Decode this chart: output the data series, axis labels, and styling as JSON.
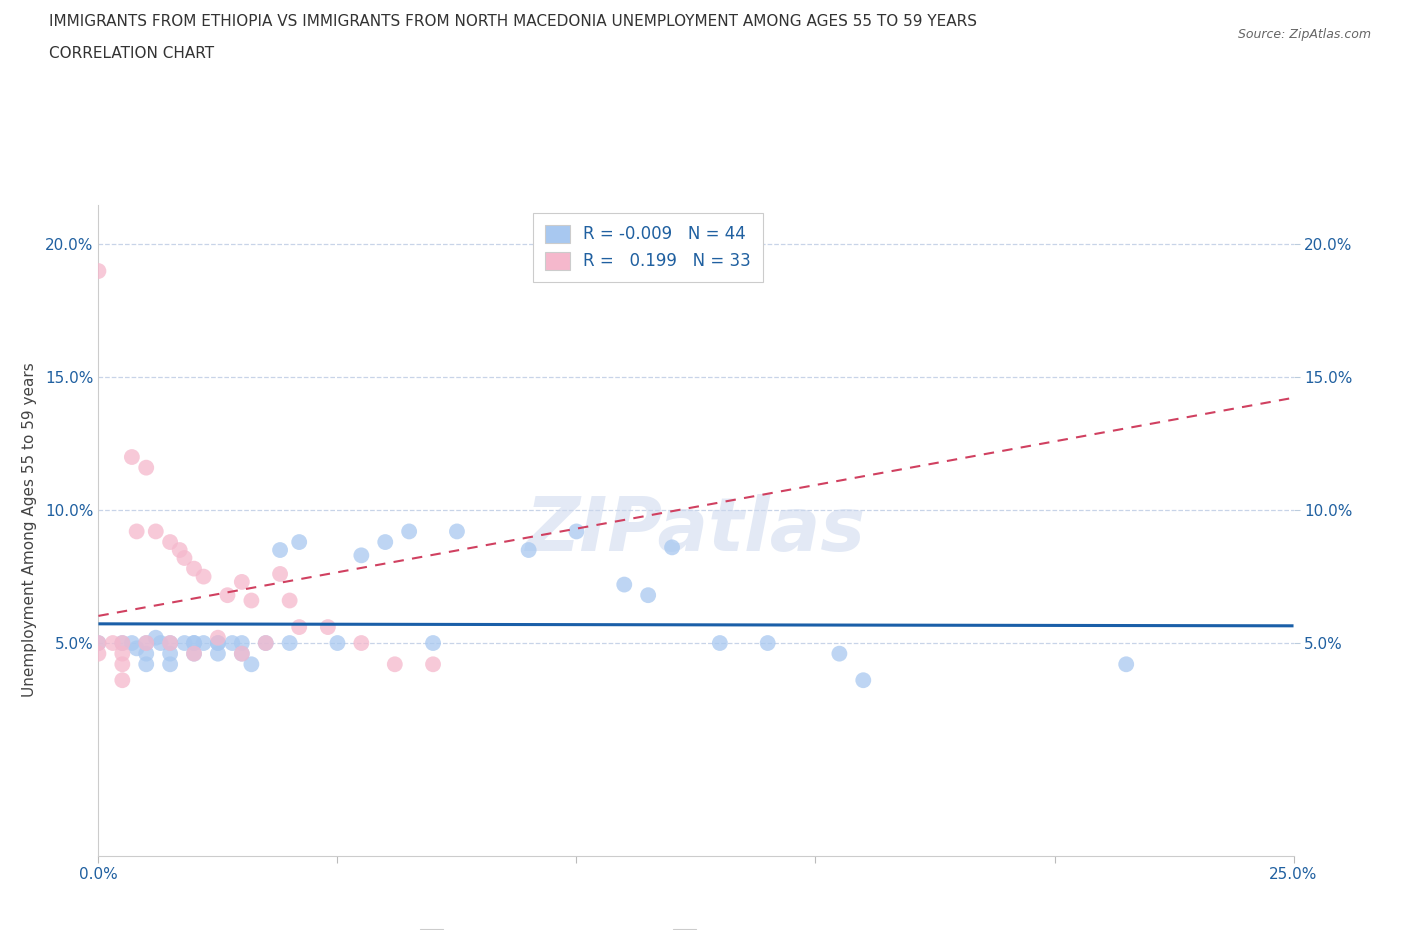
{
  "title_line1": "IMMIGRANTS FROM ETHIOPIA VS IMMIGRANTS FROM NORTH MACEDONIA UNEMPLOYMENT AMONG AGES 55 TO 59 YEARS",
  "title_line2": "CORRELATION CHART",
  "source": "Source: ZipAtlas.com",
  "ylabel": "Unemployment Among Ages 55 to 59 years",
  "xlim": [
    0.0,
    0.25
  ],
  "ylim": [
    -0.03,
    0.215
  ],
  "yticks": [
    0.05,
    0.1,
    0.15,
    0.2
  ],
  "ytick_labels": [
    "5.0%",
    "10.0%",
    "15.0%",
    "20.0%"
  ],
  "xticks": [
    0.0,
    0.05,
    0.1,
    0.15,
    0.2,
    0.25
  ],
  "xtick_labels": [
    "0.0%",
    "",
    "",
    "",
    "",
    "25.0%"
  ],
  "watermark": "ZIPatlas",
  "legend_r_ethiopia": "-0.009",
  "legend_n_ethiopia": "44",
  "legend_r_macedonia": "0.199",
  "legend_n_macedonia": "33",
  "color_ethiopia": "#a8c8f0",
  "color_macedonia": "#f5b8cc",
  "trendline_ethiopia_color": "#1a5fa8",
  "trendline_macedonia_color": "#d04060",
  "gridline_color": "#c8d4e8",
  "ethiopia_x": [
    0.0,
    0.005,
    0.007,
    0.008,
    0.01,
    0.01,
    0.01,
    0.012,
    0.013,
    0.015,
    0.015,
    0.015,
    0.018,
    0.02,
    0.02,
    0.02,
    0.022,
    0.025,
    0.025,
    0.025,
    0.028,
    0.03,
    0.03,
    0.032,
    0.035,
    0.038,
    0.04,
    0.042,
    0.05,
    0.055,
    0.06,
    0.065,
    0.07,
    0.075,
    0.09,
    0.1,
    0.11,
    0.115,
    0.12,
    0.13,
    0.14,
    0.155,
    0.16,
    0.215
  ],
  "ethiopia_y": [
    0.05,
    0.05,
    0.05,
    0.048,
    0.05,
    0.046,
    0.042,
    0.052,
    0.05,
    0.05,
    0.046,
    0.042,
    0.05,
    0.05,
    0.05,
    0.046,
    0.05,
    0.05,
    0.05,
    0.046,
    0.05,
    0.05,
    0.046,
    0.042,
    0.05,
    0.085,
    0.05,
    0.088,
    0.05,
    0.083,
    0.088,
    0.092,
    0.05,
    0.092,
    0.085,
    0.092,
    0.072,
    0.068,
    0.086,
    0.05,
    0.05,
    0.046,
    0.036,
    0.042
  ],
  "macedonia_x": [
    0.0,
    0.0,
    0.0,
    0.003,
    0.005,
    0.005,
    0.005,
    0.005,
    0.007,
    0.008,
    0.01,
    0.01,
    0.012,
    0.015,
    0.015,
    0.017,
    0.018,
    0.02,
    0.02,
    0.022,
    0.025,
    0.027,
    0.03,
    0.03,
    0.032,
    0.035,
    0.038,
    0.04,
    0.042,
    0.048,
    0.055,
    0.062,
    0.07
  ],
  "macedonia_y": [
    0.19,
    0.05,
    0.046,
    0.05,
    0.05,
    0.046,
    0.042,
    0.036,
    0.12,
    0.092,
    0.116,
    0.05,
    0.092,
    0.088,
    0.05,
    0.085,
    0.082,
    0.078,
    0.046,
    0.075,
    0.052,
    0.068,
    0.073,
    0.046,
    0.066,
    0.05,
    0.076,
    0.066,
    0.056,
    0.056,
    0.05,
    0.042,
    0.042
  ]
}
